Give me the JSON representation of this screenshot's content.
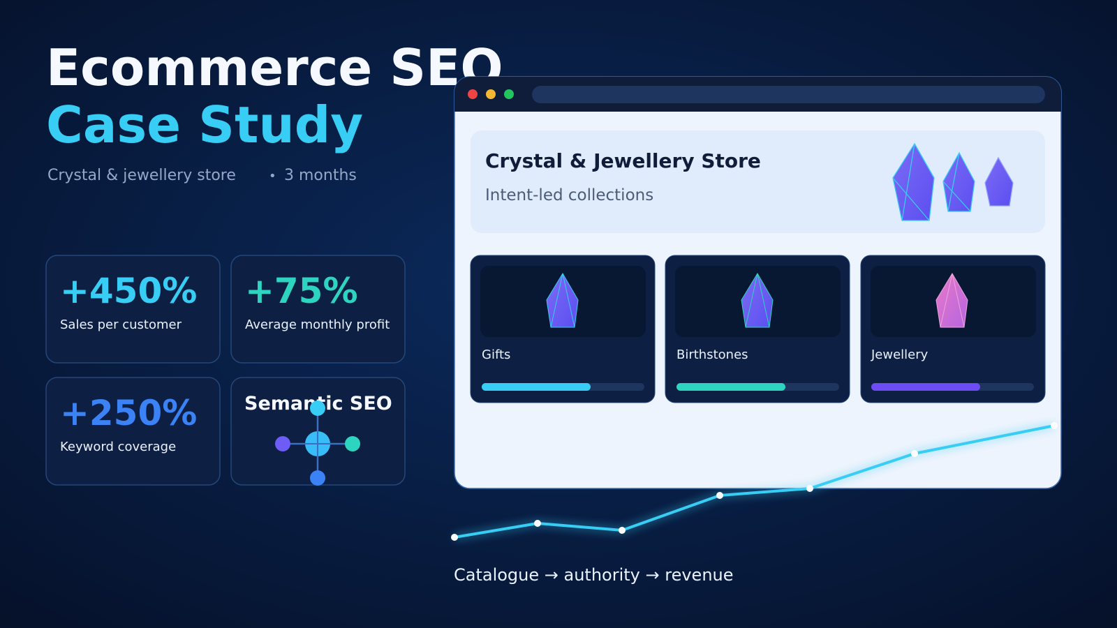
{
  "header": {
    "title_line1": "Ecommerce SEO",
    "title_line2": "Case Study",
    "subtitle": "Crystal & jewellery store",
    "duration": "3 months"
  },
  "stats": [
    {
      "value": "+450%",
      "label": "Sales per customer"
    },
    {
      "value": "+75%",
      "label": "Average monthly profit"
    },
    {
      "value": "+250%",
      "label": "Keyword coverage"
    }
  ],
  "semantic": {
    "title": "Semantic SEO"
  },
  "browser": {
    "store_title": "Crystal & Jewellery Store",
    "tagline": "Intent-led collections",
    "collections": [
      {
        "label": "Gifts"
      },
      {
        "label": "Birthstones"
      },
      {
        "label": "Jewellery"
      }
    ]
  },
  "caption": "Catalogue → authority → revenue"
}
